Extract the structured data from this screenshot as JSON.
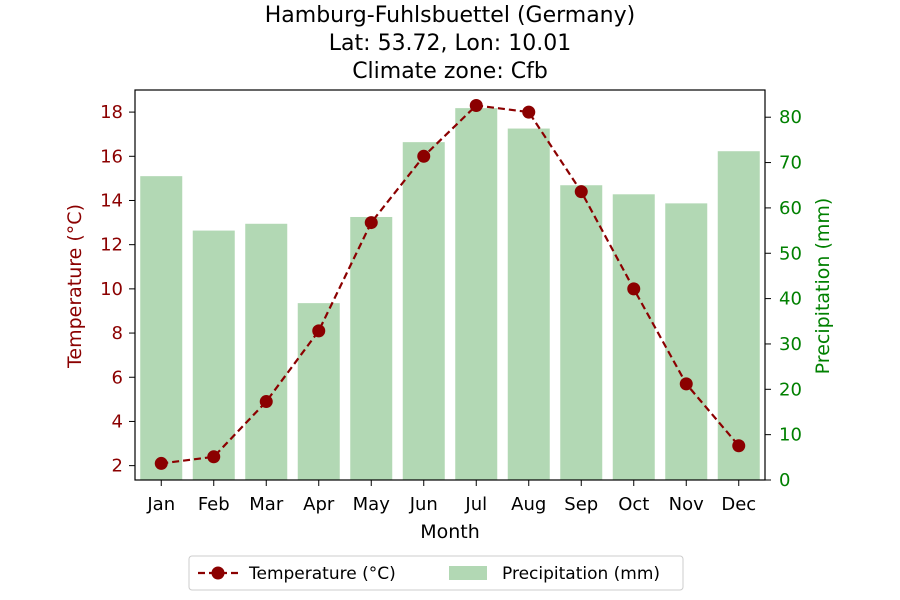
{
  "chart_data": {
    "type": "bar+line",
    "title_lines": [
      "Hamburg-Fuhlsbuettel (Germany)",
      "Lat: 53.72, Lon: 10.01",
      "Climate zone: Cfb"
    ],
    "xlabel": "Month",
    "categories": [
      "Jan",
      "Feb",
      "Mar",
      "Apr",
      "May",
      "Jun",
      "Jul",
      "Aug",
      "Sep",
      "Oct",
      "Nov",
      "Dec"
    ],
    "temperature": {
      "name": "Temperature (°C)",
      "axis_label": "Temperature (°C)",
      "color": "#8b0000",
      "values": [
        2.1,
        2.4,
        4.9,
        8.1,
        13.0,
        16.0,
        18.3,
        18.0,
        14.4,
        10.0,
        5.7,
        2.9
      ],
      "ylim": [
        1.35,
        19.0
      ],
      "ticks": [
        2,
        4,
        6,
        8,
        10,
        12,
        14,
        16,
        18
      ]
    },
    "precipitation": {
      "name": "Precipitation (mm)",
      "axis_label": "Precipitation (mm)",
      "color": "#008000",
      "bar_color": "#b2d8b4",
      "values": [
        67,
        55,
        56.5,
        39,
        58,
        74.5,
        82,
        77.5,
        65,
        63,
        61,
        72.5
      ],
      "ylim": [
        0,
        86
      ],
      "ticks": [
        0,
        10,
        20,
        30,
        40,
        50,
        60,
        70,
        80
      ]
    },
    "legend": {
      "placement": "bottom-center",
      "items": [
        "Temperature (°C)",
        "Precipitation (mm)"
      ]
    }
  }
}
